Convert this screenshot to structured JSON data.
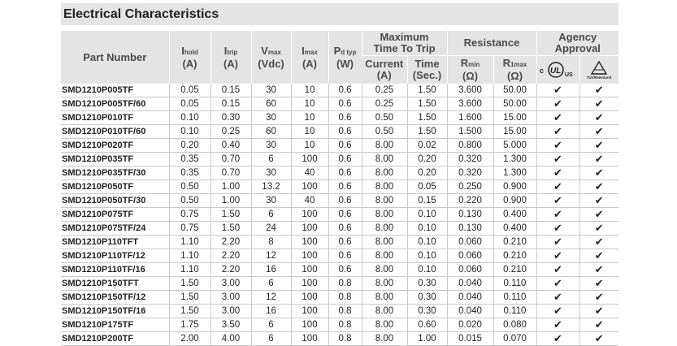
{
  "title": "Electrical Characteristics",
  "headers": {
    "part_number": "Part Number",
    "ihold": {
      "main": "I",
      "sub": "hold",
      "unit": "(A)"
    },
    "itrip": {
      "main": "I",
      "sub": "trip",
      "unit": "(A)"
    },
    "vmax": {
      "main": "V",
      "sub": "max",
      "unit": "(Vdc)"
    },
    "imax": {
      "main": "I",
      "sub": "max",
      "unit": "(A)"
    },
    "pd": {
      "main": "P",
      "sub": "d typ",
      "unit": "(W)"
    },
    "max_time_to_trip": "Maximum Time To Trip",
    "current": {
      "label": "Current",
      "unit": "(A)"
    },
    "time": {
      "label": "Time",
      "unit": "(Sec.)"
    },
    "resistance": "Resistance",
    "rmin": {
      "main": "R",
      "sub": "min",
      "unit": "(Ω)"
    },
    "r1max": {
      "main": "R",
      "sub": "1max",
      "unit": "(Ω)"
    },
    "agency_approval": "Agency Approval",
    "ul_mark": "c UL us",
    "tuv_mark": "TÜVRheinland"
  },
  "check_glyph": "✔",
  "rows": [
    [
      "SMD1210P005TF",
      "0.05",
      "0.15",
      "30",
      "10",
      "0.6",
      "0.25",
      "1.50",
      "3.600",
      "50.00"
    ],
    [
      "SMD1210P005TF/60",
      "0.05",
      "0.15",
      "60",
      "10",
      "0.6",
      "0.25",
      "1.50",
      "3.600",
      "50.00"
    ],
    [
      "SMD1210P010TF",
      "0.10",
      "0.30",
      "30",
      "10",
      "0.6",
      "0.50",
      "1.50",
      "1.600",
      "15.00"
    ],
    [
      "SMD1210P010TF/60",
      "0.10",
      "0.25",
      "60",
      "10",
      "0.6",
      "0.50",
      "1.50",
      "1.500",
      "15.00"
    ],
    [
      "SMD1210P020TF",
      "0.20",
      "0.40",
      "30",
      "10",
      "0.6",
      "8.00",
      "0.02",
      "0.800",
      "5.000"
    ],
    [
      "SMD1210P035TF",
      "0.35",
      "0.70",
      "6",
      "100",
      "0.6",
      "8.00",
      "0.20",
      "0.320",
      "1.300"
    ],
    [
      "SMD1210P035TF/30",
      "0.35",
      "0.70",
      "30",
      "40",
      "0.6",
      "8.00",
      "0.20",
      "0.320",
      "1.300"
    ],
    [
      "SMD1210P050TF",
      "0.50",
      "1.00",
      "13.2",
      "100",
      "0.6",
      "8.00",
      "0.05",
      "0.250",
      "0.900"
    ],
    [
      "SMD1210P050TF/30",
      "0.50",
      "1.00",
      "30",
      "40",
      "0.6",
      "8.00",
      "0.15",
      "0.220",
      "0.900"
    ],
    [
      "SMD1210P075TF",
      "0.75",
      "1.50",
      "6",
      "100",
      "0.6",
      "8.00",
      "0.10",
      "0.130",
      "0.400"
    ],
    [
      "SMD1210P075TF/24",
      "0.75",
      "1.50",
      "24",
      "100",
      "0.6",
      "8.00",
      "0.10",
      "0.130",
      "0.400"
    ],
    [
      "SMD1210P110TFT",
      "1.10",
      "2.20",
      "8",
      "100",
      "0.6",
      "8.00",
      "0.10",
      "0.060",
      "0.210"
    ],
    [
      "SMD1210P110TF/12",
      "1.10",
      "2.20",
      "12",
      "100",
      "0.6",
      "8.00",
      "0.10",
      "0.060",
      "0.210"
    ],
    [
      "SMD1210P110TF/16",
      "1.10",
      "2.20",
      "16",
      "100",
      "0.6",
      "8.00",
      "0.10",
      "0.060",
      "0.210"
    ],
    [
      "SMD1210P150TFT",
      "1.50",
      "3.00",
      "6",
      "100",
      "0.8",
      "8.00",
      "0.30",
      "0.040",
      "0.110"
    ],
    [
      "SMD1210P150TF/12",
      "1.50",
      "3.00",
      "12",
      "100",
      "0.8",
      "8.00",
      "0.30",
      "0.040",
      "0.110"
    ],
    [
      "SMD1210P150TF/16",
      "1.50",
      "3.00",
      "16",
      "100",
      "0.8",
      "8.00",
      "0.30",
      "0.040",
      "0.110"
    ],
    [
      "SMD1210P175TF",
      "1.75",
      "3.50",
      "6",
      "100",
      "0.8",
      "8.00",
      "0.60",
      "0.020",
      "0.080"
    ],
    [
      "SMD1210P200TF",
      "2.00",
      "4.00",
      "6",
      "100",
      "0.8",
      "8.00",
      "1.00",
      "0.015",
      "0.070"
    ]
  ]
}
